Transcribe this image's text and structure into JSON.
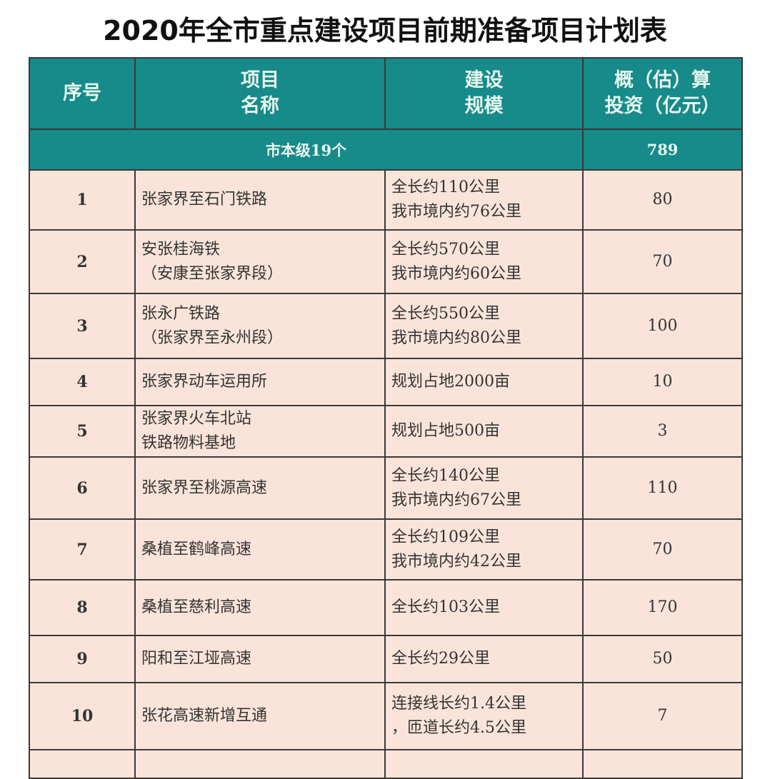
{
  "title": "2020年全市重点建设项目前期准备项目计划表",
  "headers": {
    "no": "序号",
    "name_1": "项目",
    "name_2": "名称",
    "scale_1": "建设",
    "scale_2": "规模",
    "inv_1": "概（估）算",
    "inv_2": "投资（亿元）"
  },
  "subtotal": {
    "label": "市本级19个",
    "value": "789"
  },
  "colors": {
    "header_bg": "#178a8a",
    "row_bg": "#fae4da"
  },
  "rows": [
    {
      "no": "1",
      "name_1": "张家界至石门铁路",
      "name_2": "",
      "scale_1": "全长约110公里",
      "scale_2": "我市境内约76公里",
      "investment": "80"
    },
    {
      "no": "2",
      "name_1": "安张桂海铁",
      "name_2": "（安康至张家界段）",
      "scale_1": "全长约570公里",
      "scale_2": "我市境内约60公里",
      "investment": "70"
    },
    {
      "no": "3",
      "name_1": "张永广铁路",
      "name_2": "（张家界至永州段）",
      "scale_1": "全长约550公里",
      "scale_2": "我市境内约80公里",
      "investment": "100"
    },
    {
      "no": "4",
      "name_1": "张家界动车运用所",
      "name_2": "",
      "scale_1": "规划占地2000亩",
      "scale_2": "",
      "investment": "10"
    },
    {
      "no": "5",
      "name_1": "张家界火车北站",
      "name_2": "铁路物料基地",
      "scale_1": "规划占地500亩",
      "scale_2": "",
      "investment": "3"
    },
    {
      "no": "6",
      "name_1": "张家界至桃源高速",
      "name_2": "",
      "scale_1": "全长约140公里",
      "scale_2": "我市境内约67公里",
      "investment": "110"
    },
    {
      "no": "7",
      "name_1": "桑植至鹤峰高速",
      "name_2": "",
      "scale_1": "全长约109公里",
      "scale_2": "我市境内约42公里",
      "investment": "70"
    },
    {
      "no": "8",
      "name_1": "桑植至慈利高速",
      "name_2": "",
      "scale_1": "全长约103公里",
      "scale_2": "",
      "investment": "170"
    },
    {
      "no": "9",
      "name_1": "阳和至江垭高速",
      "name_2": "",
      "scale_1": "全长约29公里",
      "scale_2": "",
      "investment": "50"
    },
    {
      "no": "10",
      "name_1": "张花高速新增互通",
      "name_2": "",
      "scale_1": "连接线长约1.4公里",
      "scale_2": "，匝道长约4.5公里",
      "investment": "7"
    }
  ]
}
